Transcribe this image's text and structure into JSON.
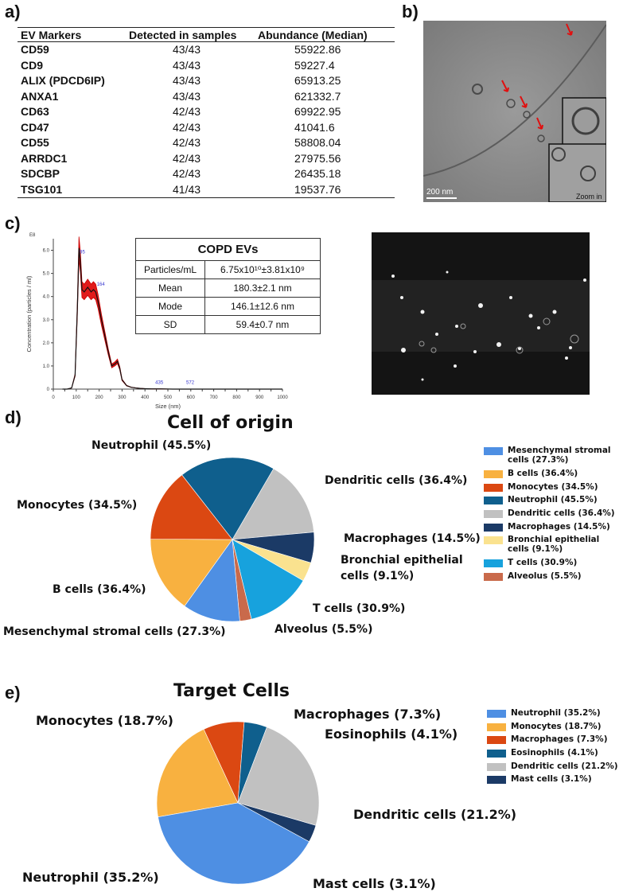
{
  "panels": {
    "a": "a)",
    "b": "b)",
    "c": "c)",
    "d": "d)",
    "e": "e)"
  },
  "table_a": {
    "headers": [
      "EV Markers",
      "Detected in samples",
      "Abundance (Median)"
    ],
    "rows": [
      [
        "CD59",
        "43/43",
        "55922.86"
      ],
      [
        "CD9",
        "43/43",
        "59227.4"
      ],
      [
        "ALIX (PDCD6IP)",
        "43/43",
        "65913.25"
      ],
      [
        "ANXA1",
        "43/43",
        "621332.7"
      ],
      [
        "CD63",
        "42/43",
        "69922.95"
      ],
      [
        "CD47",
        "42/43",
        "41041.6"
      ],
      [
        "CD55",
        "42/43",
        "58808.04"
      ],
      [
        "ARRDC1",
        "42/43",
        "27975.56"
      ],
      [
        "SDCBP",
        "42/43",
        "26435.18"
      ],
      [
        "TSG101",
        "41/43",
        "19537.76"
      ]
    ]
  },
  "micrograph": {
    "scale_bar": "200 nm",
    "zoom_label": "Zoom in"
  },
  "copd_table": {
    "title": "COPD EVs",
    "rows": [
      [
        "Particles/mL",
        "6.75x10¹⁰±3.81x10⁹"
      ],
      [
        "Mean",
        "180.3±2.1 nm"
      ],
      [
        "Mode",
        "146.1±12.6 nm"
      ],
      [
        "SD",
        "59.4±0.7 nm"
      ]
    ]
  },
  "chart_data": [
    {
      "type": "line",
      "title": "",
      "xlabel": "Size (nm)",
      "ylabel": "Concentration (particles / ml)",
      "y_multiplier_label": "E8",
      "xlim": [
        0,
        1000
      ],
      "ylim": [
        0,
        6.5
      ],
      "x_ticks": [
        "0",
        "50",
        "100",
        "150",
        "200",
        "250",
        "300",
        "350",
        "400",
        "450",
        "500",
        "550",
        "600",
        "650",
        "700",
        "750",
        "800",
        "850",
        "900",
        "950",
        "1000"
      ],
      "y_ticks": [
        "0",
        "1.0",
        "2.0",
        "3.0",
        "4.0",
        "5.0",
        "6.0"
      ],
      "peak_labels": [
        {
          "x": 115,
          "y": 5.8,
          "text": "95"
        },
        {
          "x": 190,
          "y": 4.4,
          "text": "164"
        },
        {
          "x": 445,
          "y": 0.15,
          "text": "435"
        },
        {
          "x": 580,
          "y": 0.15,
          "text": "572"
        }
      ],
      "series": [
        {
          "x": [
            40,
            60,
            80,
            95,
            105,
            112,
            118,
            125,
            135,
            150,
            165,
            175,
            185,
            195,
            210,
            225,
            240,
            255,
            270,
            280,
            290,
            300,
            320,
            340,
            360,
            380,
            400,
            430,
            470,
            520,
            600,
            1000
          ],
          "y": [
            0,
            0,
            0.05,
            0.6,
            3.5,
            6.1,
            5.5,
            4.3,
            4.2,
            4.4,
            4.2,
            4.3,
            4.2,
            3.8,
            3.0,
            2.3,
            1.6,
            1.0,
            1.1,
            1.2,
            0.9,
            0.4,
            0.15,
            0.08,
            0.05,
            0.03,
            0.02,
            0.01,
            0.01,
            0,
            0,
            0
          ]
        }
      ]
    },
    {
      "type": "pie",
      "title": "Cell of origin",
      "slices": [
        {
          "label": "Neutrophil (45.5%)",
          "value": 45.5,
          "color": "#0f5f8d"
        },
        {
          "label": "Dendritic cells (36.4%)",
          "value": 36.4,
          "color": "#c1c1c1"
        },
        {
          "label": "Macrophages (14.5%)",
          "value": 14.5,
          "color": "#1b3a66"
        },
        {
          "label": "Bronchial epithelial cells (9.1%)",
          "value": 9.1,
          "color": "#fae28f"
        },
        {
          "label": "T cells (30.9%)",
          "value": 30.9,
          "color": "#17a2dd"
        },
        {
          "label": "Alveolus (5.5%)",
          "value": 5.5,
          "color": "#c96a4b"
        },
        {
          "label": "Mesenchymal stromal cells (27.3%)",
          "value": 27.3,
          "color": "#4e8fe3"
        },
        {
          "label": "B cells (36.4%)",
          "value": 36.4,
          "color": "#f8b140"
        },
        {
          "label": "Monocytes (34.5%)",
          "value": 34.5,
          "color": "#db4812"
        }
      ],
      "legend": [
        {
          "label": "Mesenchymal stromal cells (27.3%)",
          "color": "#4e8fe3"
        },
        {
          "label": "B cells (36.4%)",
          "color": "#f8b140"
        },
        {
          "label": "Monocytes (34.5%)",
          "color": "#db4812"
        },
        {
          "label": "Neutrophil (45.5%)",
          "color": "#0f5f8d"
        },
        {
          "label": "Dendritic cells (36.4%)",
          "color": "#c1c1c1"
        },
        {
          "label": "Macrophages (14.5%)",
          "color": "#1b3a66"
        },
        {
          "label": "Bronchial epithelial cells (9.1%)",
          "color": "#fae28f"
        },
        {
          "label": "T cells (30.9%)",
          "color": "#17a2dd"
        },
        {
          "label": "Alveolus (5.5%)",
          "color": "#c96a4b"
        }
      ]
    },
    {
      "type": "pie",
      "title": "Target Cells",
      "slices": [
        {
          "label": "Monocytes (18.7%)",
          "value": 18.7,
          "color": "#f8b140"
        },
        {
          "label": "Macrophages (7.3%)",
          "value": 7.3,
          "color": "#db4812"
        },
        {
          "label": "Eosinophils (4.1%)",
          "value": 4.1,
          "color": "#0f5f8d"
        },
        {
          "label": "Dendritic cells (21.2%)",
          "value": 21.2,
          "color": "#c1c1c1"
        },
        {
          "label": "Mast cells (3.1%)",
          "value": 3.1,
          "color": "#1b3a66"
        },
        {
          "label": "Neutrophil (35.2%)",
          "value": 35.2,
          "color": "#4e8fe3"
        }
      ],
      "legend": [
        {
          "label": "Neutrophil (35.2%)",
          "color": "#4e8fe3"
        },
        {
          "label": "Monocytes (18.7%)",
          "color": "#f8b140"
        },
        {
          "label": "Macrophages (7.3%)",
          "color": "#db4812"
        },
        {
          "label": "Eosinophils (4.1%)",
          "color": "#0f5f8d"
        },
        {
          "label": "Dendritic cells (21.2%)",
          "color": "#c1c1c1"
        },
        {
          "label": "Mast cells (3.1%)",
          "color": "#1b3a66"
        }
      ]
    }
  ]
}
